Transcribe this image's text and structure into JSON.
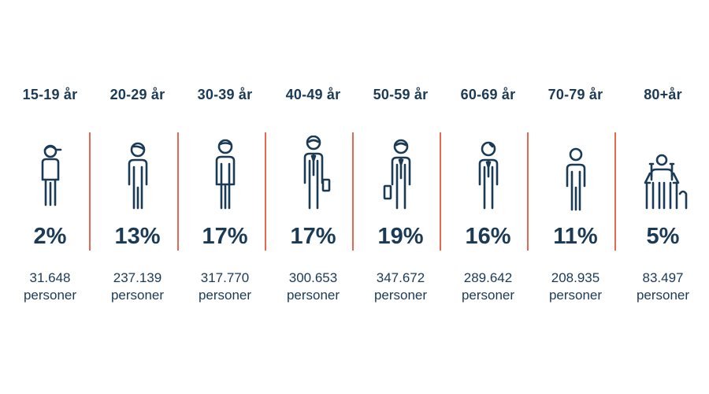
{
  "groups": [
    {
      "age": "15-19 år",
      "percent": "2%",
      "count": "31.648",
      "unit": "personer",
      "figure": "teen-with-cap-icon"
    },
    {
      "age": "20-29 år",
      "percent": "13%",
      "count": "237.139",
      "unit": "personer",
      "figure": "young-adult-icon"
    },
    {
      "age": "30-39 år",
      "percent": "17%",
      "count": "317.770",
      "unit": "personer",
      "figure": "adult-icon"
    },
    {
      "age": "40-49 år",
      "percent": "17%",
      "count": "300.653",
      "unit": "personer",
      "figure": "businessman-icon"
    },
    {
      "age": "50-59 år",
      "percent": "19%",
      "count": "347.672",
      "unit": "personer",
      "figure": "businessman-briefcase-icon"
    },
    {
      "age": "60-69 år",
      "percent": "16%",
      "count": "289.642",
      "unit": "personer",
      "figure": "older-adult-tie-icon"
    },
    {
      "age": "70-79 år",
      "percent": "11%",
      "count": "208.935",
      "unit": "personer",
      "figure": "senior-icon"
    },
    {
      "age": "80+år",
      "percent": "5%",
      "count": "83.497",
      "unit": "personer",
      "figure": "elderly-with-walker-icon"
    }
  ],
  "colors": {
    "text": "#1a3a56",
    "divider": "#e8674f",
    "background": "#ffffff"
  }
}
